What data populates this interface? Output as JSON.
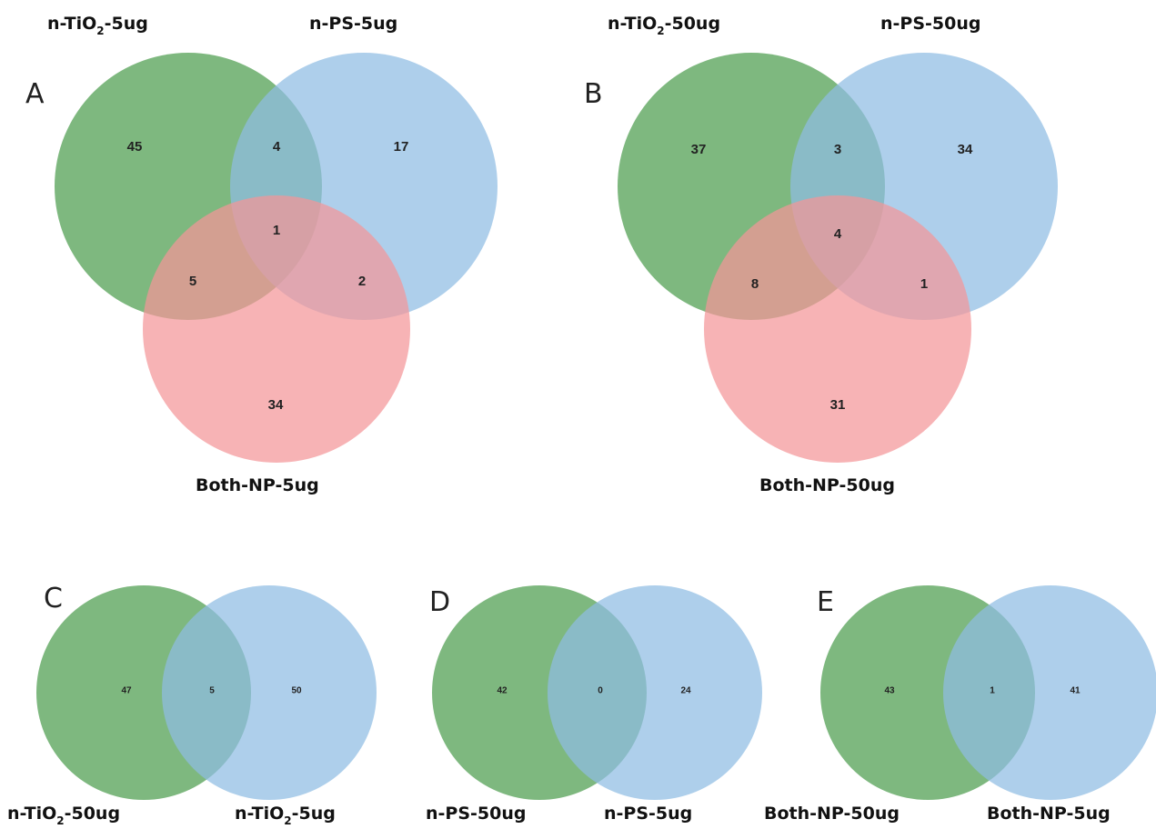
{
  "colors": {
    "green": "#5ea65f",
    "blue": "#8fbde3",
    "red": "#f49599"
  },
  "panels": [
    {
      "letter": "A",
      "sets": [
        "n-TiO2-5ug",
        "n-PS-5ug",
        "Both-NP-5ug"
      ],
      "regions": {
        "only_tio2": "45",
        "tio2_ps": "4",
        "only_ps": "17",
        "all_three": "1",
        "tio2_both": "5",
        "ps_both": "2",
        "only_both": "34"
      }
    },
    {
      "letter": "B",
      "sets": [
        "n-TiO2-50ug",
        "n-PS-50ug",
        "Both-NP-50ug"
      ],
      "regions": {
        "only_tio2": "37",
        "tio2_ps": "3",
        "only_ps": "34",
        "all_three": "4",
        "tio2_both": "8",
        "ps_both": "1",
        "only_both": "31"
      }
    },
    {
      "letter": "C",
      "sets": [
        "n-TiO2-50ug",
        "n-TiO2-5ug"
      ],
      "regions": {
        "left_only": "47",
        "overlap": "5",
        "right_only": "50"
      }
    },
    {
      "letter": "D",
      "sets": [
        "n-PS-50ug",
        "n-PS-5ug"
      ],
      "regions": {
        "left_only": "42",
        "overlap": "0",
        "right_only": "24"
      }
    },
    {
      "letter": "E",
      "sets": [
        "Both-NP-50ug",
        "Both-NP-5ug"
      ],
      "regions": {
        "left_only": "43",
        "overlap": "1",
        "right_only": "41"
      }
    }
  ]
}
